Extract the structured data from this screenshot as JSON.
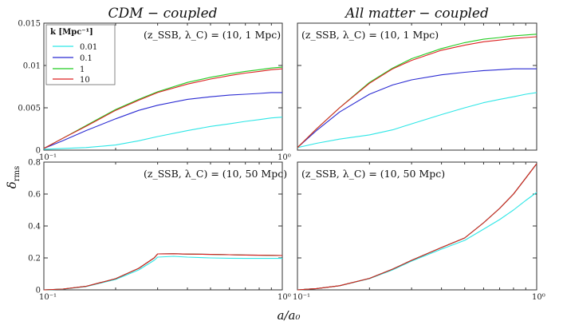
{
  "figure": {
    "xlabel": "a/a₀",
    "ylabel": "δ",
    "ylabel_sub": "rms",
    "column_titles": [
      "CDM − coupled",
      "All matter − coupled"
    ]
  },
  "legend": {
    "title": "k [Mpc⁻¹]",
    "entries": [
      "0.01",
      "0.1",
      "1",
      "10"
    ]
  },
  "colors": {
    "k0.01": "#2de6e6",
    "k0.1": "#2a2ad2",
    "k1": "#22cc22",
    "k10": "#dd2222"
  },
  "chart_data": [
    {
      "id": "top-left",
      "type": "line",
      "title": "CDM − coupled",
      "annotation": "(z_SSB, λ_C) = (10, 1 Mpc)",
      "xscale": "log",
      "xlim": [
        0.1,
        1
      ],
      "ylim": [
        0,
        0.015
      ],
      "xticks": [
        "10⁻¹",
        "10⁰"
      ],
      "yticks": [
        "0",
        "0.005",
        "0.01",
        "0.015"
      ],
      "legend": "top-left",
      "x": [
        0.1,
        0.12,
        0.15,
        0.2,
        0.25,
        0.3,
        0.4,
        0.5,
        0.6,
        0.7,
        0.8,
        0.9,
        1.0
      ],
      "series": [
        {
          "name": "0.01",
          "color_key": "k0.01",
          "values": [
            0.0001,
            0.0002,
            0.0003,
            0.0006,
            0.0011,
            0.0016,
            0.0023,
            0.0028,
            0.0031,
            0.0034,
            0.0036,
            0.0038,
            0.0039
          ]
        },
        {
          "name": "0.1",
          "color_key": "k0.1",
          "values": [
            0.0002,
            0.0011,
            0.0023,
            0.0037,
            0.0047,
            0.0053,
            0.006,
            0.0063,
            0.0065,
            0.0066,
            0.0067,
            0.0068,
            0.0068
          ]
        },
        {
          "name": "1",
          "color_key": "k1",
          "values": [
            0.0002,
            0.0014,
            0.0029,
            0.0048,
            0.006,
            0.0069,
            0.008,
            0.0086,
            0.009,
            0.0093,
            0.0095,
            0.0097,
            0.0098
          ]
        },
        {
          "name": "10",
          "color_key": "k10",
          "values": [
            0.0002,
            0.0014,
            0.0028,
            0.0047,
            0.0059,
            0.0068,
            0.0078,
            0.0084,
            0.0088,
            0.0091,
            0.0093,
            0.0095,
            0.0096
          ]
        }
      ]
    },
    {
      "id": "top-right",
      "type": "line",
      "title": "All matter − coupled",
      "annotation": "(z_SSB, λ_C) = (10, 1 Mpc)",
      "xscale": "log",
      "xlim": [
        0.1,
        1
      ],
      "ylim": [
        0,
        0.015
      ],
      "xticks": [],
      "yticks": [],
      "x": [
        0.1,
        0.12,
        0.15,
        0.2,
        0.25,
        0.3,
        0.4,
        0.5,
        0.6,
        0.7,
        0.8,
        0.9,
        1.0
      ],
      "series": [
        {
          "name": "0.01",
          "color_key": "k0.01",
          "values": [
            0.0003,
            0.0008,
            0.0013,
            0.0018,
            0.0024,
            0.0031,
            0.0042,
            0.005,
            0.0056,
            0.006,
            0.0063,
            0.0066,
            0.0068
          ]
        },
        {
          "name": "0.1",
          "color_key": "k0.1",
          "values": [
            0.0003,
            0.0023,
            0.0045,
            0.0066,
            0.0077,
            0.0083,
            0.0089,
            0.0092,
            0.0094,
            0.0095,
            0.0096,
            0.0096,
            0.0096
          ]
        },
        {
          "name": "1",
          "color_key": "k1",
          "values": [
            0.0003,
            0.0025,
            0.005,
            0.008,
            0.0097,
            0.0108,
            0.012,
            0.0127,
            0.0131,
            0.0133,
            0.0135,
            0.0136,
            0.0137
          ]
        },
        {
          "name": "10",
          "color_key": "k10",
          "values": [
            0.0003,
            0.0025,
            0.005,
            0.0079,
            0.0096,
            0.0106,
            0.0118,
            0.0124,
            0.0128,
            0.013,
            0.0132,
            0.0133,
            0.0134
          ]
        }
      ]
    },
    {
      "id": "bottom-left",
      "type": "line",
      "annotation": "(z_SSB, λ_C) = (10, 50 Mpc)",
      "xscale": "log",
      "xlim": [
        0.1,
        1
      ],
      "ylim": [
        0,
        0.8
      ],
      "xticks": [
        "10⁻¹",
        "10⁰"
      ],
      "yticks": [
        "0",
        "0.2",
        "0.4",
        "0.6",
        "0.8"
      ],
      "x": [
        0.1,
        0.12,
        0.15,
        0.2,
        0.25,
        0.29,
        0.3,
        0.35,
        0.4,
        0.5,
        0.6,
        0.7,
        0.8,
        1.0
      ],
      "series": [
        {
          "name": "0.01",
          "color_key": "k0.01",
          "values": [
            0.0,
            0.004,
            0.02,
            0.065,
            0.125,
            0.185,
            0.205,
            0.21,
            0.205,
            0.2,
            0.198,
            0.197,
            0.197,
            0.197
          ]
        },
        {
          "name": "0.1",
          "color_key": "k0.1",
          "values": [
            0.0,
            0.005,
            0.022,
            0.07,
            0.135,
            0.2,
            0.225,
            0.226,
            0.224,
            0.222,
            0.22,
            0.218,
            0.217,
            0.215
          ]
        },
        {
          "name": "1",
          "color_key": "k1",
          "values": [
            0.0,
            0.005,
            0.022,
            0.07,
            0.135,
            0.2,
            0.225,
            0.226,
            0.224,
            0.222,
            0.22,
            0.218,
            0.217,
            0.215
          ]
        },
        {
          "name": "10",
          "color_key": "k10",
          "values": [
            0.0,
            0.005,
            0.022,
            0.07,
            0.135,
            0.2,
            0.225,
            0.226,
            0.224,
            0.222,
            0.22,
            0.218,
            0.217,
            0.215
          ]
        }
      ]
    },
    {
      "id": "bottom-right",
      "type": "line",
      "annotation": "(z_SSB, λ_C) = (10, 50 Mpc)",
      "xscale": "log",
      "xlim": [
        0.1,
        1
      ],
      "ylim": [
        0,
        0.8
      ],
      "xticks": [
        "10⁻¹",
        "10⁰"
      ],
      "yticks": [],
      "x": [
        0.1,
        0.12,
        0.15,
        0.2,
        0.25,
        0.3,
        0.4,
        0.5,
        0.6,
        0.7,
        0.8,
        0.9,
        1.0
      ],
      "series": [
        {
          "name": "0.01",
          "color_key": "k0.01",
          "values": [
            0.0,
            0.008,
            0.025,
            0.07,
            0.125,
            0.18,
            0.255,
            0.31,
            0.38,
            0.44,
            0.5,
            0.56,
            0.61
          ]
        },
        {
          "name": "0.1",
          "color_key": "k0.1",
          "values": [
            0.0,
            0.008,
            0.026,
            0.072,
            0.13,
            0.185,
            0.265,
            0.325,
            0.42,
            0.51,
            0.6,
            0.7,
            0.79
          ]
        },
        {
          "name": "1",
          "color_key": "k1",
          "values": [
            0.0,
            0.008,
            0.026,
            0.072,
            0.13,
            0.185,
            0.265,
            0.325,
            0.42,
            0.51,
            0.6,
            0.7,
            0.79
          ]
        },
        {
          "name": "10",
          "color_key": "k10",
          "values": [
            0.0,
            0.008,
            0.026,
            0.072,
            0.13,
            0.185,
            0.265,
            0.325,
            0.42,
            0.51,
            0.6,
            0.7,
            0.79
          ]
        }
      ]
    }
  ]
}
